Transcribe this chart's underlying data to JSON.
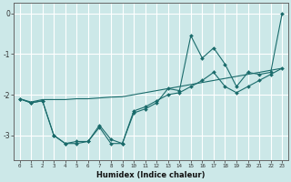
{
  "xlabel": "Humidex (Indice chaleur)",
  "bg_color": "#cce8e8",
  "grid_color": "#ffffff",
  "line_color": "#1a6b6b",
  "x_values": [
    0,
    1,
    2,
    3,
    4,
    5,
    6,
    7,
    8,
    9,
    10,
    11,
    12,
    13,
    14,
    15,
    16,
    17,
    18,
    19,
    20,
    21,
    22,
    23
  ],
  "line1": [
    -2.1,
    -2.2,
    -2.15,
    -3.0,
    -3.2,
    -3.2,
    -3.15,
    -2.8,
    -3.2,
    -3.2,
    -2.45,
    -2.35,
    -2.2,
    -1.85,
    -1.9,
    -0.55,
    -1.1,
    -0.85,
    -1.25,
    -1.8,
    -1.45,
    -1.5,
    -1.45,
    0.0
  ],
  "line2": [
    -2.1,
    -2.2,
    -2.15,
    -3.0,
    -3.2,
    -3.15,
    -3.15,
    -2.75,
    -3.1,
    -3.2,
    -2.4,
    -2.3,
    -2.15,
    -2.0,
    -1.95,
    -1.8,
    -1.65,
    -1.45,
    -1.8,
    -1.95,
    -1.8,
    -1.65,
    -1.5,
    -1.35
  ],
  "line3": [
    -2.1,
    -2.18,
    -2.12,
    -2.12,
    -2.12,
    -2.1,
    -2.1,
    -2.08,
    -2.06,
    -2.05,
    -2.0,
    -1.95,
    -1.9,
    -1.85,
    -1.8,
    -1.75,
    -1.7,
    -1.65,
    -1.6,
    -1.55,
    -1.5,
    -1.45,
    -1.4,
    -1.35
  ],
  "ylim": [
    -3.6,
    0.25
  ],
  "xlim": [
    -0.5,
    23.5
  ],
  "yticks": [
    0,
    -1,
    -2,
    -3
  ],
  "xticks": [
    0,
    1,
    2,
    3,
    4,
    5,
    6,
    7,
    8,
    9,
    10,
    11,
    12,
    13,
    14,
    15,
    16,
    17,
    18,
    19,
    20,
    21,
    22,
    23
  ]
}
